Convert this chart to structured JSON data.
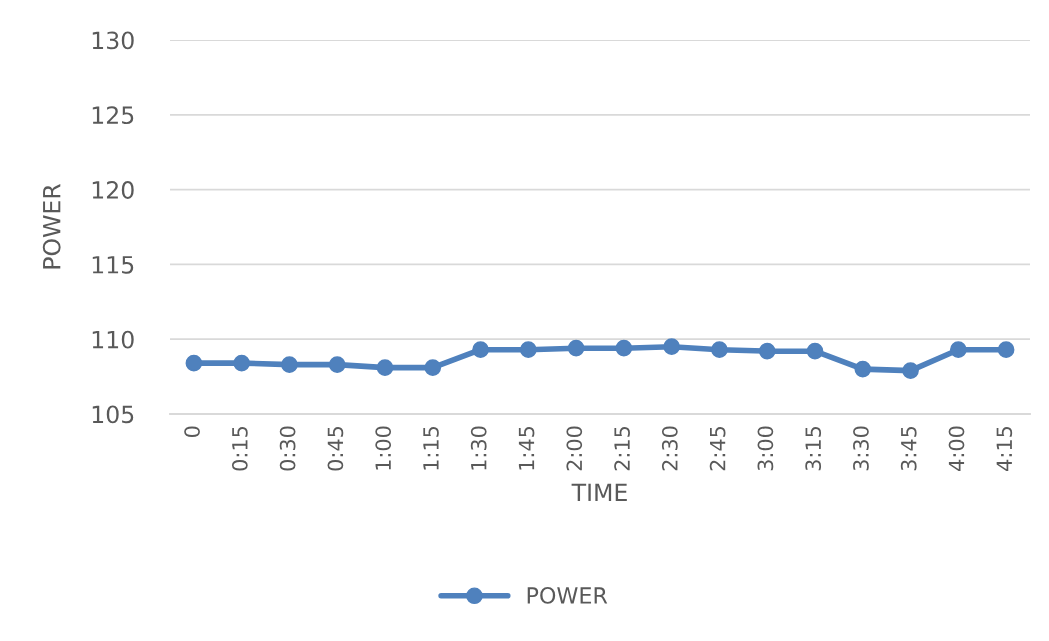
{
  "chart_data": {
    "type": "line",
    "xlabel": "TIME",
    "ylabel": "POWER",
    "categories": [
      "0",
      "0:15",
      "0:30",
      "0:45",
      "1:00",
      "1:15",
      "1:30",
      "1:45",
      "2:00",
      "2:15",
      "2:30",
      "2:45",
      "3:00",
      "3:15",
      "3:30",
      "3:45",
      "4:00",
      "4:15"
    ],
    "series": [
      {
        "name": "POWER",
        "color": "#4f81bd",
        "values": [
          108.4,
          108.4,
          108.3,
          108.3,
          108.1,
          108.1,
          109.3,
          109.3,
          109.4,
          109.4,
          109.5,
          109.3,
          109.2,
          109.2,
          108.0,
          107.9,
          109.3,
          109.3
        ]
      }
    ],
    "ylim": [
      105,
      130
    ],
    "yticks": [
      105,
      110,
      115,
      120,
      125,
      130
    ],
    "grid": "y",
    "legend": "bottom",
    "marker": "circle",
    "line_style": "solid"
  }
}
